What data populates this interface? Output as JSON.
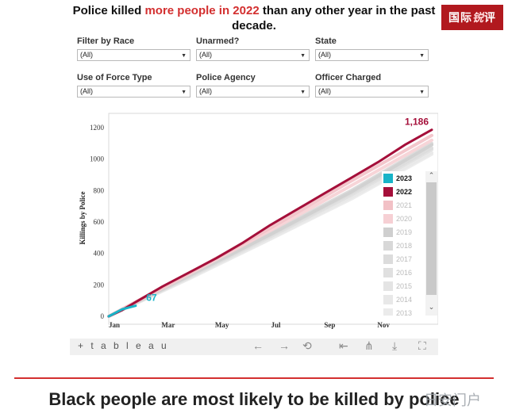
{
  "header": {
    "title_prefix": "Police killed ",
    "title_highlight": "more people in 2022",
    "title_suffix": " than any other year in the past decade.",
    "highlight_color": "#d32f2f"
  },
  "brand": {
    "text_a": "国际",
    "text_b": "锐",
    "text_c": "评"
  },
  "filters": [
    {
      "label": "Filter by Race",
      "value": "(All)"
    },
    {
      "label": "Unarmed?",
      "value": "(All)"
    },
    {
      "label": "State",
      "value": "(All)"
    },
    {
      "label": "Use of Force Type",
      "value": "(All)"
    },
    {
      "label": "Police Agency",
      "value": "(All)"
    },
    {
      "label": "Officer Charged",
      "value": "(All)"
    }
  ],
  "chart_data": {
    "type": "line",
    "ylabel": "Killings by Police",
    "xlabel": "",
    "x_ticks": [
      "Jan",
      "Mar",
      "May",
      "Jul",
      "Sep",
      "Nov"
    ],
    "y_ticks": [
      0,
      200,
      400,
      600,
      800,
      1000,
      1200
    ],
    "ylim": [
      0,
      1250
    ],
    "x_unit": "month",
    "xlim": [
      0,
      12
    ],
    "grid": false,
    "legend_position": "right",
    "series": [
      {
        "name": "2023",
        "color": "#18b4c8",
        "end_label": "67",
        "x": [
          0,
          0.5,
          1.0
        ],
        "y": [
          0,
          45,
          67
        ]
      },
      {
        "name": "2022",
        "color": "#a50f3a",
        "end_label": "1,186",
        "x": [
          0,
          0.5,
          1,
          2,
          3,
          4,
          5,
          6,
          7,
          8,
          9,
          10,
          11,
          12
        ],
        "y": [
          0,
          40,
          90,
          190,
          280,
          370,
          470,
          580,
          680,
          780,
          880,
          980,
          1090,
          1186
        ]
      },
      {
        "name": "2021",
        "color": "#f2c1c6",
        "x": [
          0,
          3,
          6,
          9,
          12
        ],
        "y": [
          0,
          275,
          560,
          860,
          1150
        ]
      },
      {
        "name": "2020",
        "color": "#f6d0d4",
        "x": [
          0,
          3,
          6,
          9,
          12
        ],
        "y": [
          0,
          270,
          545,
          830,
          1120
        ]
      },
      {
        "name": "2019",
        "color": "#cfcfcf",
        "x": [
          0,
          3,
          6,
          9,
          12
        ],
        "y": [
          0,
          260,
          520,
          790,
          1090
        ]
      },
      {
        "name": "2018",
        "color": "#d8d8d8",
        "x": [
          0,
          3,
          6,
          9,
          12
        ],
        "y": [
          0,
          265,
          530,
          800,
          1100
        ]
      },
      {
        "name": "2017",
        "color": "#dcdcdc",
        "x": [
          0,
          3,
          6,
          9,
          12
        ],
        "y": [
          0,
          255,
          515,
          780,
          1070
        ]
      },
      {
        "name": "2016",
        "color": "#e0e0e0",
        "x": [
          0,
          3,
          6,
          9,
          12
        ],
        "y": [
          0,
          250,
          505,
          770,
          1060
        ]
      },
      {
        "name": "2015",
        "color": "#e4e4e4",
        "x": [
          0,
          3,
          6,
          9,
          12
        ],
        "y": [
          0,
          258,
          525,
          795,
          1090
        ]
      },
      {
        "name": "2014",
        "color": "#e8e8e8",
        "x": [
          0,
          3,
          6,
          9,
          12
        ],
        "y": [
          0,
          245,
          495,
          755,
          1040
        ]
      },
      {
        "name": "2013",
        "color": "#ebebeb",
        "x": [
          0,
          3,
          6,
          9,
          12
        ],
        "y": [
          0,
          240,
          490,
          745,
          1030
        ]
      }
    ]
  },
  "legend": {
    "items": [
      {
        "label": "2023",
        "color": "#18b4c8",
        "strong": true
      },
      {
        "label": "2022",
        "color": "#a50f3a",
        "strong": true
      },
      {
        "label": "2021",
        "color": "#f2c1c6",
        "strong": false
      },
      {
        "label": "2020",
        "color": "#f6d0d4",
        "strong": false
      },
      {
        "label": "2019",
        "color": "#cfcfcf",
        "strong": false
      },
      {
        "label": "2018",
        "color": "#d8d8d8",
        "strong": false
      },
      {
        "label": "2017",
        "color": "#dcdcdc",
        "strong": false
      },
      {
        "label": "2016",
        "color": "#e0e0e0",
        "strong": false
      },
      {
        "label": "2015",
        "color": "#e4e4e4",
        "strong": false
      },
      {
        "label": "2014",
        "color": "#e8e8e8",
        "strong": false
      },
      {
        "label": "2013",
        "color": "#ebebeb",
        "strong": false
      }
    ]
  },
  "toolbar": {
    "logo": "+ t a b l e a u",
    "icons": [
      "undo-icon",
      "redo-icon",
      "revert-icon",
      "reset-icon",
      "share-icon",
      "download-icon",
      "fullscreen-icon"
    ]
  },
  "section": {
    "heading": "Black people are most likely to be killed by police"
  },
  "watermark": {
    "text": "日安门户"
  }
}
